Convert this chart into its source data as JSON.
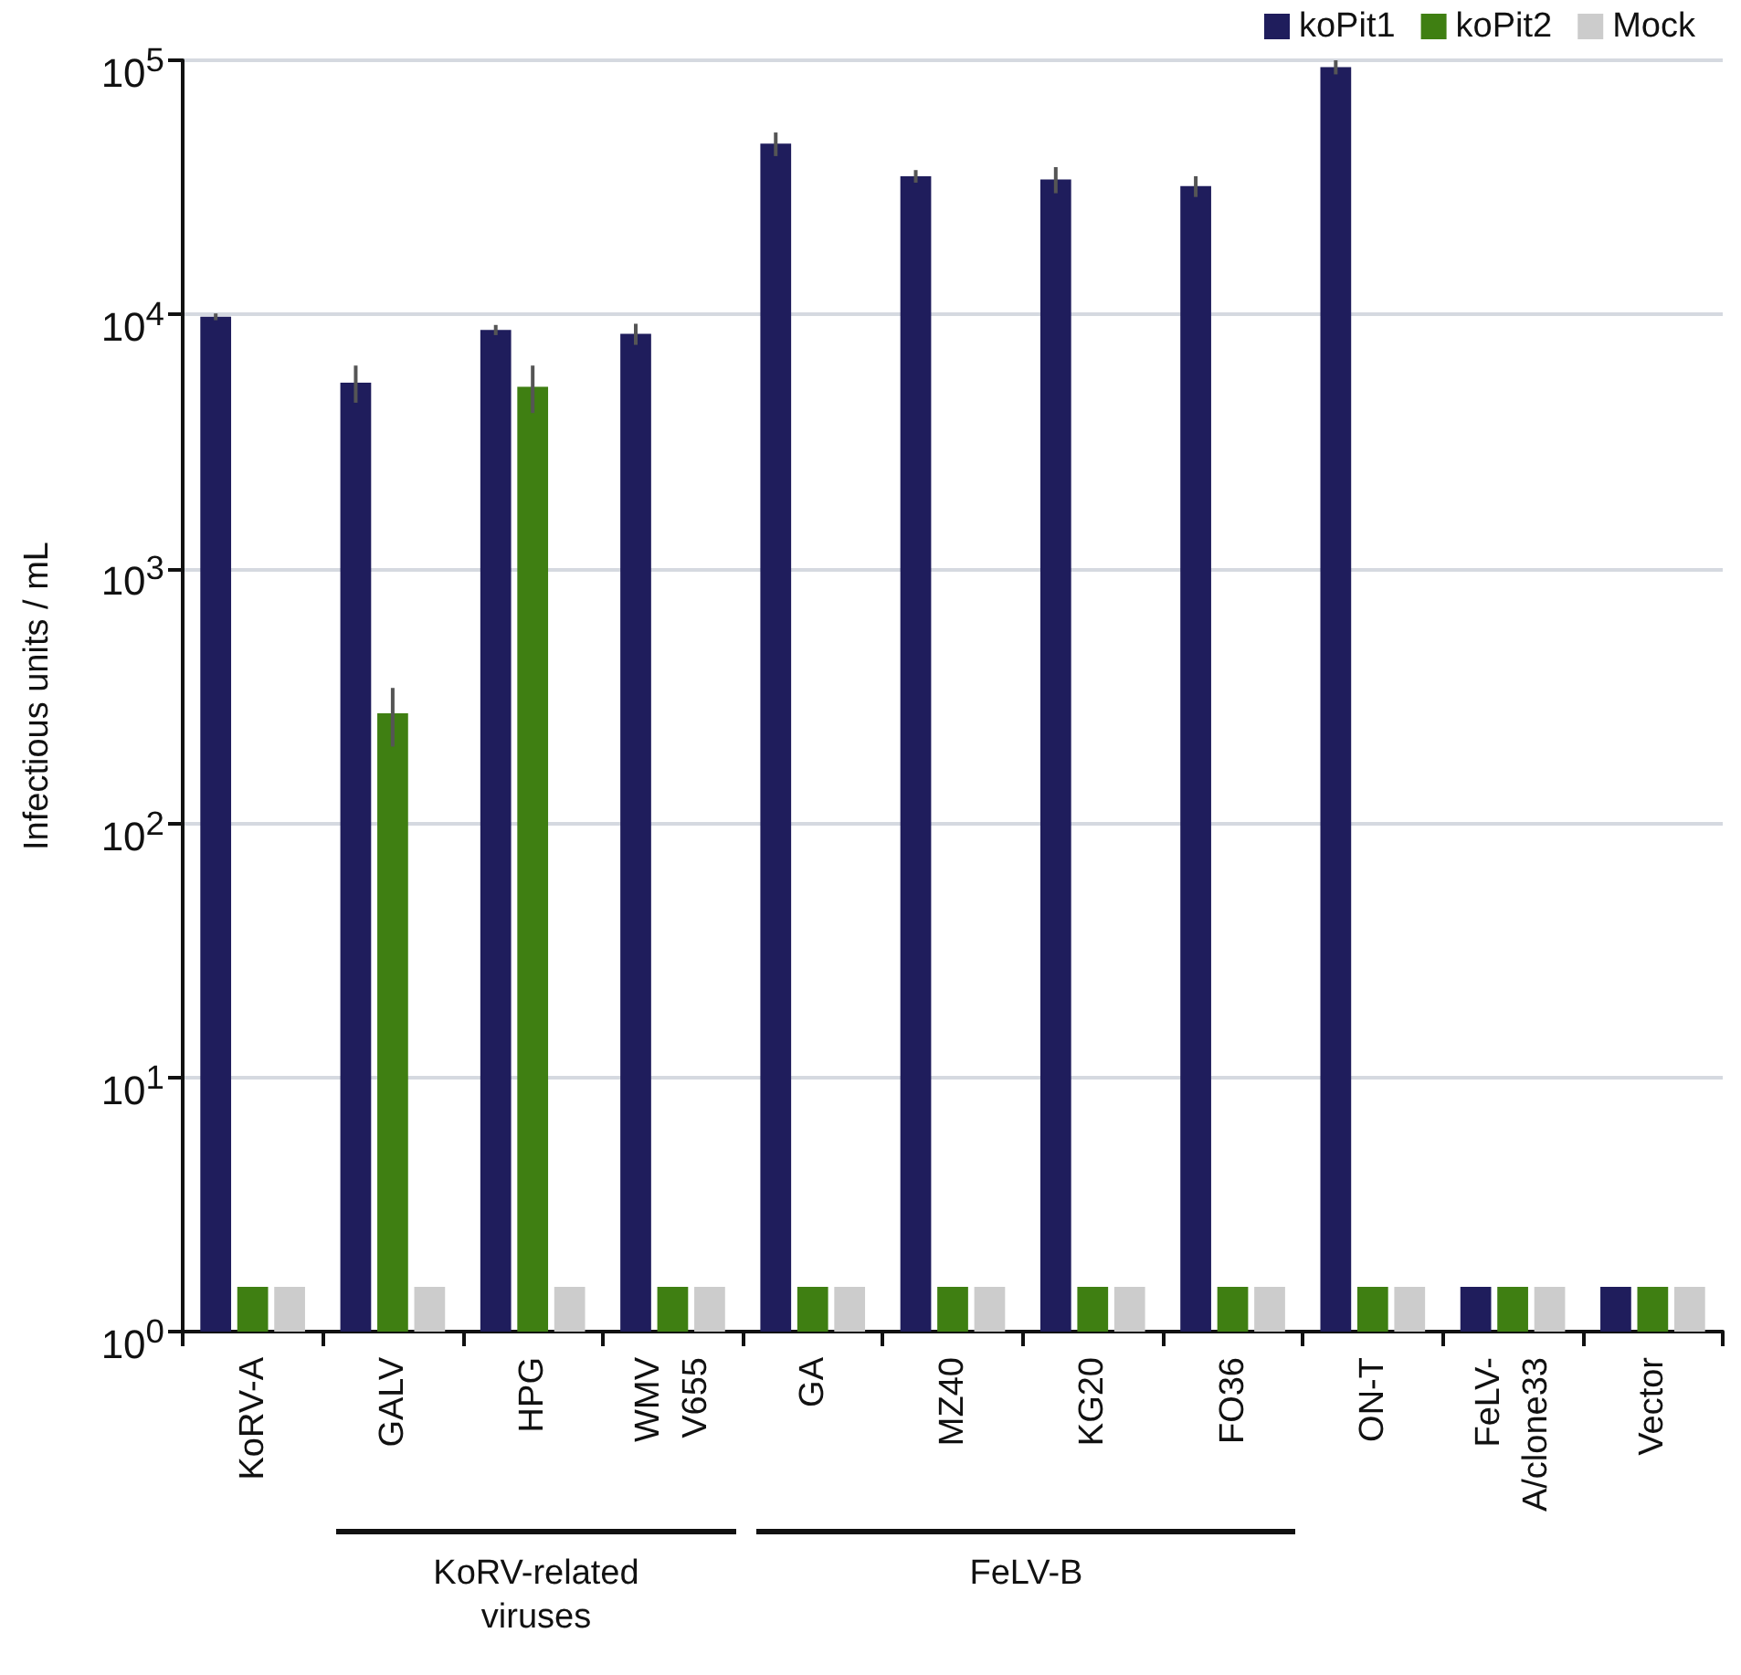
{
  "chart_data": {
    "type": "bar",
    "ylabel": "Infectious units / mL",
    "categories": [
      "KoRV-A",
      "GALV",
      "HPG",
      "WMV V655",
      "GA",
      "MZ40",
      "KG20",
      "FO36",
      "ON-T",
      "FeLV-A/clone33",
      "Vector"
    ],
    "series": [
      {
        "name": "koPit1",
        "color": "#1f1d5c",
        "values": [
          9800,
          5400,
          8700,
          8400,
          47000,
          35000,
          34000,
          32000,
          94000,
          1.5,
          1.5
        ],
        "errors": [
          300,
          900,
          400,
          800,
          5000,
          2000,
          4000,
          3000,
          6000,
          null,
          null
        ]
      },
      {
        "name": "koPit2",
        "color": "#3f7f12",
        "values": [
          1.5,
          270,
          5200,
          1.5,
          1.5,
          1.5,
          1.5,
          1.5,
          1.5,
          1.5,
          1.5
        ],
        "errors": [
          null,
          70,
          1100,
          null,
          null,
          null,
          null,
          null,
          null,
          null,
          null
        ]
      },
      {
        "name": "Mock",
        "color": "#cccccc",
        "values": [
          1.5,
          1.5,
          1.5,
          1.5,
          1.5,
          1.5,
          1.5,
          1.5,
          1.5,
          1.5,
          1.5
        ]
      }
    ],
    "log": true,
    "ylim": [
      1,
      100000
    ],
    "yticks": [
      {
        "value": 1,
        "label": "10$^{0}$"
      },
      {
        "value": 10,
        "label": "10$^{1}$"
      },
      {
        "value": 100,
        "label": "10$^{2}$"
      },
      {
        "value": 1000,
        "label": "10$^{3}$"
      },
      {
        "value": 10000,
        "label": "10$^{4}$"
      },
      {
        "value": 100000,
        "label": "10$^{5}$"
      }
    ],
    "grid": "y",
    "legend": "top right",
    "annotations": [
      "KoRV-related viruses",
      "FeLV-B"
    ]
  }
}
